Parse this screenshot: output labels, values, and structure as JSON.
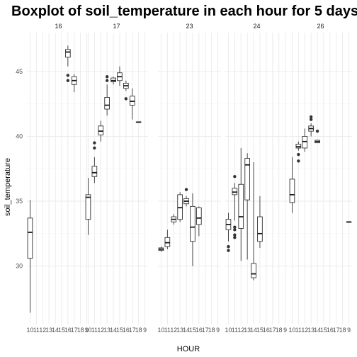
{
  "chart_data": {
    "type": "boxplot",
    "title": "Boxplot of soil_temperature in each hour for 5 days",
    "xlabel": "HOUR",
    "ylabel": "soil_temperature",
    "ylim": [
      25.5,
      48
    ],
    "y_ticks": [
      30,
      35,
      40,
      45
    ],
    "facets": [
      "16",
      "17",
      "23",
      "24",
      "26"
    ],
    "x_ticks": [
      "10",
      "11",
      "12",
      "13",
      "14",
      "15",
      "16",
      "17",
      "18",
      "9"
    ],
    "grid": true,
    "colors": {
      "box_fill": "#ffffff",
      "box_line": "#333333",
      "outlier": "#333333",
      "grid": "#ebebeb"
    },
    "panels": [
      {
        "facet": "16",
        "boxes": [
          {
            "hour": "10",
            "min": 26.4,
            "q1": 30.6,
            "median": 32.6,
            "q3": 33.7,
            "max": 35.1,
            "outliers": []
          },
          {
            "hour": "16",
            "min": 45.4,
            "q1": 46.1,
            "median": 46.5,
            "q3": 46.7,
            "max": 47.0,
            "outliers": [
              44.7,
              44.3
            ]
          },
          {
            "hour": "17",
            "min": 43.4,
            "q1": 44.0,
            "median": 44.3,
            "q3": 44.6,
            "max": 44.8,
            "outliers": []
          }
        ]
      },
      {
        "facet": "17",
        "boxes": [
          {
            "hour": "10",
            "min": 32.4,
            "q1": 33.6,
            "median": 35.3,
            "q3": 35.5,
            "max": 36.8,
            "outliers": []
          },
          {
            "hour": "11",
            "min": 36.4,
            "q1": 36.9,
            "median": 37.2,
            "q3": 37.7,
            "max": 38.4,
            "outliers": [
              39.5,
              39.1
            ]
          },
          {
            "hour": "12",
            "min": 39.6,
            "q1": 40.1,
            "median": 40.4,
            "q3": 40.8,
            "max": 41.2,
            "outliers": []
          },
          {
            "hour": "13",
            "min": 41.6,
            "q1": 42.1,
            "median": 42.4,
            "q3": 43.0,
            "max": 44.0,
            "outliers": [
              44.6,
              44.3
            ]
          },
          {
            "hour": "14",
            "min": 44.0,
            "q1": 44.2,
            "median": 44.3,
            "q3": 44.5,
            "max": 44.6,
            "outliers": []
          },
          {
            "hour": "15",
            "min": 43.9,
            "q1": 44.3,
            "median": 44.6,
            "q3": 44.9,
            "max": 45.4,
            "outliers": []
          },
          {
            "hour": "16",
            "min": 43.5,
            "q1": 43.7,
            "median": 43.9,
            "q3": 44.1,
            "max": 44.3,
            "outliers": [
              42.9
            ]
          },
          {
            "hour": "17",
            "min": 41.3,
            "q1": 42.4,
            "median": 42.7,
            "q3": 43.1,
            "max": 43.7,
            "outliers": []
          },
          {
            "hour": "18",
            "min": 41.1,
            "q1": 41.1,
            "median": 41.1,
            "q3": 41.1,
            "max": 41.1,
            "outliers": []
          }
        ]
      },
      {
        "facet": "23",
        "boxes": [
          {
            "hour": "10",
            "min": 31.1,
            "q1": 31.2,
            "median": 31.3,
            "q3": 31.4,
            "max": 31.5,
            "outliers": []
          },
          {
            "hour": "11",
            "min": 31.3,
            "q1": 31.5,
            "median": 31.8,
            "q3": 32.2,
            "max": 32.8,
            "outliers": []
          },
          {
            "hour": "12",
            "min": 33.2,
            "q1": 33.4,
            "median": 33.6,
            "q3": 33.8,
            "max": 34.0,
            "outliers": []
          },
          {
            "hour": "13",
            "min": 33.4,
            "q1": 33.6,
            "median": 34.5,
            "q3": 35.5,
            "max": 35.7,
            "outliers": []
          },
          {
            "hour": "14",
            "min": 34.6,
            "q1": 34.8,
            "median": 35.0,
            "q3": 35.2,
            "max": 35.4,
            "outliers": [
              35.9
            ]
          },
          {
            "hour": "15",
            "min": 30.0,
            "q1": 31.9,
            "median": 33.0,
            "q3": 34.6,
            "max": 35.6,
            "outliers": []
          },
          {
            "hour": "16",
            "min": 32.3,
            "q1": 33.2,
            "median": 33.7,
            "q3": 34.5,
            "max": 34.6,
            "outliers": []
          }
        ]
      },
      {
        "facet": "24",
        "boxes": [
          {
            "hour": "10",
            "min": 31.9,
            "q1": 32.8,
            "median": 33.2,
            "q3": 33.6,
            "max": 34.1,
            "outliers": [
              31.5,
              31.2
            ]
          },
          {
            "hour": "11",
            "min": 33.5,
            "q1": 35.5,
            "median": 35.7,
            "q3": 36.0,
            "max": 36.4,
            "outliers": [
              36.9,
              33.0,
              32.8,
              32.4,
              32.2
            ]
          },
          {
            "hour": "12",
            "min": 30.4,
            "q1": 32.9,
            "median": 33.8,
            "q3": 36.3,
            "max": 39.1,
            "outliers": []
          },
          {
            "hour": "13",
            "min": 30.5,
            "q1": 35.1,
            "median": 37.8,
            "q3": 38.3,
            "max": 38.7,
            "outliers": []
          },
          {
            "hour": "14",
            "min": 28.9,
            "q1": 29.1,
            "median": 29.4,
            "q3": 30.2,
            "max": 38.0,
            "outliers": []
          },
          {
            "hour": "15",
            "min": 31.4,
            "q1": 31.9,
            "median": 32.5,
            "q3": 33.8,
            "max": 35.4,
            "outliers": []
          }
        ]
      },
      {
        "facet": "26",
        "boxes": [
          {
            "hour": "10",
            "min": 34.1,
            "q1": 34.9,
            "median": 35.5,
            "q3": 36.7,
            "max": 38.4,
            "outliers": []
          },
          {
            "hour": "11",
            "min": 38.9,
            "q1": 39.1,
            "median": 39.2,
            "q3": 39.4,
            "max": 39.6,
            "outliers": [
              38.6,
              38.1
            ]
          },
          {
            "hour": "12",
            "min": 38.8,
            "q1": 39.1,
            "median": 39.6,
            "q3": 40.0,
            "max": 40.6,
            "outliers": []
          },
          {
            "hour": "13",
            "min": 40.0,
            "q1": 40.4,
            "median": 40.6,
            "q3": 40.8,
            "max": 41.0,
            "outliers": [
              41.3,
              41.5
            ]
          },
          {
            "hour": "14",
            "min": 39.5,
            "q1": 39.5,
            "median": 39.6,
            "q3": 39.7,
            "max": 39.7,
            "outliers": [
              40.4
            ]
          },
          {
            "hour": "9",
            "min": 33.4,
            "q1": 33.4,
            "median": 33.4,
            "q3": 33.4,
            "max": 33.4,
            "outliers": []
          }
        ]
      }
    ]
  }
}
